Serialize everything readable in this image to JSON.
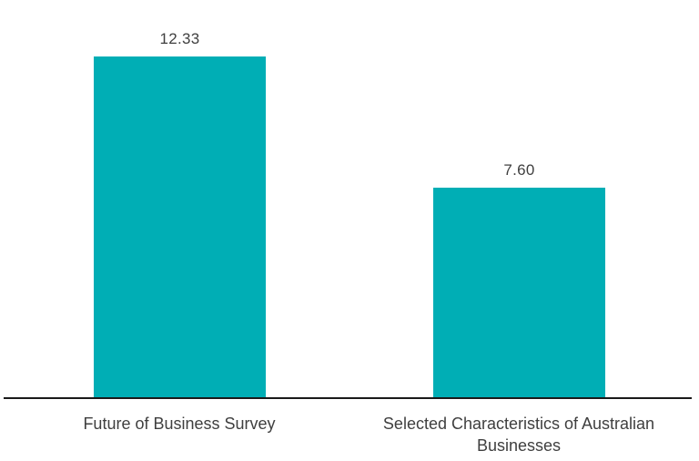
{
  "chart_data": {
    "type": "bar",
    "categories": [
      "Future of Business Survey",
      "Selected Characteristics of Australian Businesses"
    ],
    "values": [
      12.33,
      7.6
    ],
    "value_labels": [
      "12.33",
      "7.60"
    ],
    "ylim": [
      0,
      12.33
    ],
    "grid": false,
    "legend": false,
    "layout_hints": {
      "value_labels_position": "above-bars",
      "x_labels_position": "below-axis",
      "y_axis_visible": false
    },
    "colors": {
      "bar": "#00AEB5",
      "axis_line": "#1A1A1A",
      "text": "#3F3F3F",
      "background": "#FFFFFF"
    }
  }
}
